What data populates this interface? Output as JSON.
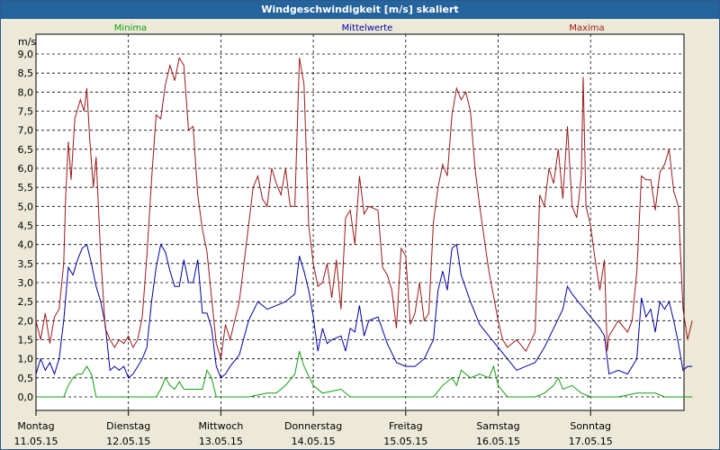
{
  "window": {
    "title": "Windgeschwindigkeit [m/s] skaliert"
  },
  "chart_data": {
    "type": "line",
    "title": "Windgeschwindigkeit [m/s] skaliert",
    "ylabel": "m/s",
    "ylim": [
      0,
      9.0
    ],
    "y_ticks": [
      "0,0",
      "0,5",
      "1,0",
      "1,5",
      "2,0",
      "2,5",
      "3,0",
      "3,5",
      "4,0",
      "4,5",
      "5,0",
      "5,5",
      "6,0",
      "6,5",
      "7,0",
      "7,5",
      "8,0",
      "8,5",
      "9,0"
    ],
    "xlim": [
      0,
      7.1
    ],
    "x_ticks": [
      {
        "day": "Montag",
        "date": "11.05.15",
        "x": 0
      },
      {
        "day": "Dienstag",
        "date": "12.05.15",
        "x": 1
      },
      {
        "day": "Mittwoch",
        "date": "13.05.15",
        "x": 2
      },
      {
        "day": "Donnerstag",
        "date": "14.05.15",
        "x": 3
      },
      {
        "day": "Freitag",
        "date": "15.05.15",
        "x": 4
      },
      {
        "day": "Samstag",
        "date": "16.05.15",
        "x": 5
      },
      {
        "day": "Sonntag",
        "date": "17.05.15",
        "x": 6
      }
    ],
    "grid": true,
    "legend_position": "top",
    "series": [
      {
        "name": "Minima",
        "color": "#10a010",
        "points": [
          [
            0,
            0
          ],
          [
            0.3,
            0
          ],
          [
            0.35,
            0.3
          ],
          [
            0.4,
            0.5
          ],
          [
            0.45,
            0.6
          ],
          [
            0.5,
            0.6
          ],
          [
            0.55,
            0.8
          ],
          [
            0.6,
            0.6
          ],
          [
            0.65,
            0
          ],
          [
            0.8,
            0
          ],
          [
            1.0,
            0
          ],
          [
            1.2,
            0
          ],
          [
            1.3,
            0
          ],
          [
            1.35,
            0.2
          ],
          [
            1.4,
            0.5
          ],
          [
            1.45,
            0.3
          ],
          [
            1.5,
            0.2
          ],
          [
            1.55,
            0.4
          ],
          [
            1.6,
            0.2
          ],
          [
            1.7,
            0.2
          ],
          [
            1.8,
            0.2
          ],
          [
            1.85,
            0.7
          ],
          [
            1.9,
            0.5
          ],
          [
            1.95,
            0
          ],
          [
            2.3,
            0
          ],
          [
            2.5,
            0.1
          ],
          [
            2.6,
            0.1
          ],
          [
            2.7,
            0.3
          ],
          [
            2.8,
            0.6
          ],
          [
            2.85,
            1.2
          ],
          [
            2.9,
            0.8
          ],
          [
            3.0,
            0.3
          ],
          [
            3.1,
            0.1
          ],
          [
            3.3,
            0.2
          ],
          [
            3.4,
            0
          ],
          [
            3.8,
            0
          ],
          [
            4.0,
            0
          ],
          [
            4.3,
            0
          ],
          [
            4.4,
            0.3
          ],
          [
            4.5,
            0.5
          ],
          [
            4.55,
            0.3
          ],
          [
            4.6,
            0.7
          ],
          [
            4.7,
            0.5
          ],
          [
            4.8,
            0.6
          ],
          [
            4.9,
            0.5
          ],
          [
            4.95,
            0.8
          ],
          [
            5.0,
            0.3
          ],
          [
            5.1,
            0
          ],
          [
            5.4,
            0
          ],
          [
            5.5,
            0.1
          ],
          [
            5.6,
            0.3
          ],
          [
            5.65,
            0.5
          ],
          [
            5.7,
            0.2
          ],
          [
            5.8,
            0.3
          ],
          [
            5.9,
            0.1
          ],
          [
            6.0,
            0
          ],
          [
            6.3,
            0
          ],
          [
            6.5,
            0.1
          ],
          [
            6.7,
            0.1
          ],
          [
            6.8,
            0
          ],
          [
            7.1,
            0
          ]
        ]
      },
      {
        "name": "Mittelwerte",
        "color": "#0000a0",
        "points": [
          [
            0,
            0.6
          ],
          [
            0.05,
            1.0
          ],
          [
            0.1,
            0.7
          ],
          [
            0.15,
            0.9
          ],
          [
            0.2,
            0.6
          ],
          [
            0.25,
            1.0
          ],
          [
            0.3,
            2.0
          ],
          [
            0.35,
            3.4
          ],
          [
            0.4,
            3.2
          ],
          [
            0.45,
            3.6
          ],
          [
            0.5,
            3.9
          ],
          [
            0.55,
            4.0
          ],
          [
            0.6,
            3.5
          ],
          [
            0.65,
            2.9
          ],
          [
            0.7,
            2.5
          ],
          [
            0.75,
            1.9
          ],
          [
            0.8,
            0.7
          ],
          [
            0.85,
            0.8
          ],
          [
            0.9,
            0.7
          ],
          [
            0.95,
            0.8
          ],
          [
            1.0,
            0.5
          ],
          [
            1.05,
            0.6
          ],
          [
            1.1,
            0.8
          ],
          [
            1.15,
            1.0
          ],
          [
            1.2,
            1.3
          ],
          [
            1.25,
            2.5
          ],
          [
            1.3,
            3.4
          ],
          [
            1.35,
            4.0
          ],
          [
            1.4,
            3.8
          ],
          [
            1.45,
            3.3
          ],
          [
            1.5,
            2.9
          ],
          [
            1.55,
            2.9
          ],
          [
            1.6,
            3.6
          ],
          [
            1.65,
            3.0
          ],
          [
            1.7,
            3.0
          ],
          [
            1.75,
            3.6
          ],
          [
            1.8,
            2.2
          ],
          [
            1.85,
            2.2
          ],
          [
            1.9,
            1.8
          ],
          [
            1.95,
            0.8
          ],
          [
            2.0,
            0.5
          ],
          [
            2.05,
            0.6
          ],
          [
            2.1,
            0.8
          ],
          [
            2.2,
            1.1
          ],
          [
            2.3,
            2.0
          ],
          [
            2.4,
            2.5
          ],
          [
            2.5,
            2.3
          ],
          [
            2.6,
            2.4
          ],
          [
            2.7,
            2.5
          ],
          [
            2.75,
            2.6
          ],
          [
            2.8,
            2.7
          ],
          [
            2.85,
            3.7
          ],
          [
            2.9,
            3.3
          ],
          [
            2.95,
            2.8
          ],
          [
            3.0,
            2.1
          ],
          [
            3.05,
            1.2
          ],
          [
            3.1,
            1.8
          ],
          [
            3.15,
            1.4
          ],
          [
            3.2,
            1.5
          ],
          [
            3.3,
            1.6
          ],
          [
            3.35,
            1.2
          ],
          [
            3.4,
            1.8
          ],
          [
            3.45,
            1.7
          ],
          [
            3.5,
            2.4
          ],
          [
            3.55,
            1.6
          ],
          [
            3.6,
            2.0
          ],
          [
            3.7,
            2.1
          ],
          [
            3.8,
            1.4
          ],
          [
            3.9,
            0.9
          ],
          [
            4.0,
            0.8
          ],
          [
            4.1,
            0.8
          ],
          [
            4.2,
            1.0
          ],
          [
            4.3,
            1.5
          ],
          [
            4.35,
            2.8
          ],
          [
            4.4,
            3.3
          ],
          [
            4.45,
            2.8
          ],
          [
            4.5,
            3.9
          ],
          [
            4.55,
            4.0
          ],
          [
            4.6,
            3.2
          ],
          [
            4.7,
            2.5
          ],
          [
            4.8,
            1.9
          ],
          [
            4.9,
            1.6
          ],
          [
            5.0,
            1.3
          ],
          [
            5.1,
            1.0
          ],
          [
            5.2,
            0.7
          ],
          [
            5.3,
            0.8
          ],
          [
            5.4,
            0.9
          ],
          [
            5.5,
            1.3
          ],
          [
            5.6,
            1.8
          ],
          [
            5.7,
            2.3
          ],
          [
            5.75,
            2.9
          ],
          [
            5.8,
            2.7
          ],
          [
            5.9,
            2.4
          ],
          [
            6.0,
            2.1
          ],
          [
            6.1,
            1.8
          ],
          [
            6.15,
            1.6
          ],
          [
            6.2,
            0.6
          ],
          [
            6.3,
            0.7
          ],
          [
            6.4,
            0.6
          ],
          [
            6.5,
            1.0
          ],
          [
            6.55,
            2.6
          ],
          [
            6.6,
            2.1
          ],
          [
            6.65,
            2.3
          ],
          [
            6.7,
            1.7
          ],
          [
            6.75,
            2.5
          ],
          [
            6.8,
            2.3
          ],
          [
            6.85,
            2.5
          ],
          [
            6.9,
            2.0
          ],
          [
            6.95,
            1.4
          ],
          [
            7.0,
            0.7
          ],
          [
            7.05,
            0.8
          ],
          [
            7.1,
            0.8
          ]
        ]
      },
      {
        "name": "Maxima",
        "color": "#9b1a1a",
        "points": [
          [
            0,
            2.0
          ],
          [
            0.05,
            1.5
          ],
          [
            0.1,
            2.2
          ],
          [
            0.15,
            1.4
          ],
          [
            0.2,
            2.1
          ],
          [
            0.25,
            2.3
          ],
          [
            0.3,
            3.5
          ],
          [
            0.32,
            5.2
          ],
          [
            0.35,
            6.7
          ],
          [
            0.38,
            5.7
          ],
          [
            0.42,
            7.3
          ],
          [
            0.48,
            7.8
          ],
          [
            0.52,
            7.5
          ],
          [
            0.55,
            8.1
          ],
          [
            0.58,
            6.8
          ],
          [
            0.62,
            5.5
          ],
          [
            0.65,
            6.3
          ],
          [
            0.7,
            3.7
          ],
          [
            0.75,
            1.8
          ],
          [
            0.8,
            1.5
          ],
          [
            0.85,
            1.3
          ],
          [
            0.9,
            1.5
          ],
          [
            0.95,
            1.4
          ],
          [
            1.0,
            1.6
          ],
          [
            1.05,
            1.3
          ],
          [
            1.1,
            1.5
          ],
          [
            1.15,
            2.1
          ],
          [
            1.2,
            3.7
          ],
          [
            1.25,
            5.7
          ],
          [
            1.3,
            7.4
          ],
          [
            1.35,
            7.3
          ],
          [
            1.4,
            8.2
          ],
          [
            1.45,
            8.7
          ],
          [
            1.5,
            8.3
          ],
          [
            1.55,
            8.9
          ],
          [
            1.6,
            8.7
          ],
          [
            1.65,
            7.0
          ],
          [
            1.7,
            7.1
          ],
          [
            1.75,
            5.3
          ],
          [
            1.8,
            4.4
          ],
          [
            1.85,
            3.8
          ],
          [
            1.9,
            2.6
          ],
          [
            1.95,
            1.4
          ],
          [
            2.0,
            1.0
          ],
          [
            2.05,
            1.9
          ],
          [
            2.1,
            1.5
          ],
          [
            2.2,
            2.5
          ],
          [
            2.3,
            4.5
          ],
          [
            2.35,
            5.5
          ],
          [
            2.4,
            5.8
          ],
          [
            2.45,
            5.2
          ],
          [
            2.5,
            5.0
          ],
          [
            2.55,
            6.0
          ],
          [
            2.6,
            5.6
          ],
          [
            2.65,
            5.3
          ],
          [
            2.7,
            6.0
          ],
          [
            2.75,
            5.0
          ],
          [
            2.8,
            5.0
          ],
          [
            2.85,
            8.9
          ],
          [
            2.9,
            8.2
          ],
          [
            2.95,
            4.5
          ],
          [
            3.0,
            3.5
          ],
          [
            3.05,
            2.9
          ],
          [
            3.1,
            3.0
          ],
          [
            3.15,
            3.5
          ],
          [
            3.2,
            2.6
          ],
          [
            3.25,
            3.6
          ],
          [
            3.3,
            2.3
          ],
          [
            3.35,
            4.7
          ],
          [
            3.4,
            4.9
          ],
          [
            3.45,
            4.0
          ],
          [
            3.5,
            5.8
          ],
          [
            3.55,
            4.8
          ],
          [
            3.6,
            5.0
          ],
          [
            3.7,
            4.9
          ],
          [
            3.75,
            3.4
          ],
          [
            3.8,
            3.2
          ],
          [
            3.85,
            2.8
          ],
          [
            3.9,
            1.8
          ],
          [
            3.95,
            3.9
          ],
          [
            4.0,
            3.7
          ],
          [
            4.05,
            1.9
          ],
          [
            4.1,
            2.2
          ],
          [
            4.15,
            3.0
          ],
          [
            4.2,
            2.0
          ],
          [
            4.25,
            2.2
          ],
          [
            4.3,
            4.6
          ],
          [
            4.35,
            5.5
          ],
          [
            4.4,
            6.1
          ],
          [
            4.45,
            5.8
          ],
          [
            4.5,
            7.4
          ],
          [
            4.55,
            8.1
          ],
          [
            4.6,
            7.8
          ],
          [
            4.65,
            8.0
          ],
          [
            4.7,
            7.5
          ],
          [
            4.75,
            6.0
          ],
          [
            4.8,
            5.0
          ],
          [
            4.9,
            3.3
          ],
          [
            5.0,
            2.0
          ],
          [
            5.05,
            1.5
          ],
          [
            5.1,
            1.3
          ],
          [
            5.2,
            1.5
          ],
          [
            5.3,
            1.2
          ],
          [
            5.4,
            1.7
          ],
          [
            5.45,
            5.3
          ],
          [
            5.5,
            5.0
          ],
          [
            5.55,
            6.0
          ],
          [
            5.6,
            5.6
          ],
          [
            5.65,
            6.5
          ],
          [
            5.7,
            5.2
          ],
          [
            5.75,
            7.1
          ],
          [
            5.8,
            5.0
          ],
          [
            5.85,
            4.7
          ],
          [
            5.9,
            5.8
          ],
          [
            5.92,
            8.4
          ],
          [
            5.95,
            5.0
          ],
          [
            6.0,
            4.5
          ],
          [
            6.05,
            3.6
          ],
          [
            6.1,
            2.8
          ],
          [
            6.15,
            3.6
          ],
          [
            6.18,
            1.2
          ],
          [
            6.2,
            1.6
          ],
          [
            6.3,
            2.0
          ],
          [
            6.4,
            1.7
          ],
          [
            6.45,
            2.0
          ],
          [
            6.5,
            3.3
          ],
          [
            6.55,
            5.8
          ],
          [
            6.6,
            5.7
          ],
          [
            6.65,
            5.7
          ],
          [
            6.7,
            4.9
          ],
          [
            6.75,
            5.9
          ],
          [
            6.8,
            6.1
          ],
          [
            6.85,
            6.5
          ],
          [
            6.9,
            5.4
          ],
          [
            6.95,
            5.0
          ],
          [
            7.0,
            2.3
          ],
          [
            7.05,
            1.5
          ],
          [
            7.1,
            2.0
          ]
        ]
      }
    ]
  }
}
